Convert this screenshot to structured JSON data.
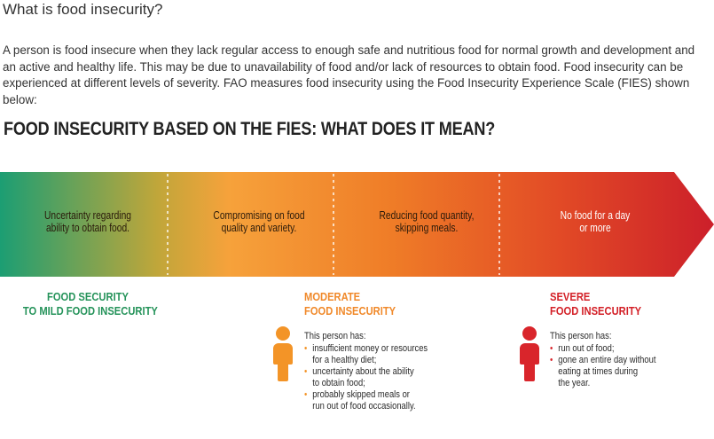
{
  "heading": "What is food insecurity?",
  "intro": "A person is food insecure when they lack regular access to enough safe and nutritious food for normal growth and development and an active and healthy life. This may be due to unavailability of food and/or lack of resources to obtain food. Food insecurity can be experienced at different levels of severity. FAO measures food insecurity using the Food Insecurity Experience Scale (FIES) shown below:",
  "figure": {
    "title": "FOOD INSECURITY BASED ON THE FIES: WHAT DOES IT MEAN?",
    "segments": [
      {
        "line1": "Uncertainty regarding",
        "line2": "ability to obtain food."
      },
      {
        "line1": "Compromising on food",
        "line2": "quality and variety."
      },
      {
        "line1": "Reducing food quantity,",
        "line2": "skipping meals."
      },
      {
        "line1": "No food for a day",
        "line2": "or more"
      }
    ],
    "levels": {
      "mild": {
        "line1": "FOOD SECURITY",
        "line2": "TO MILD FOOD INSECURITY"
      },
      "moderate": {
        "line1": "MODERATE",
        "line2": "FOOD INSECURITY",
        "lead": "This person has:",
        "bullets": [
          {
            "line1": "insufficient money or resources",
            "line2": "for a healthy diet;"
          },
          {
            "line1": "uncertainty about the ability",
            "line2": "to obtain food;"
          },
          {
            "line1": "probably skipped meals or",
            "line2": "run out of food occasionally."
          }
        ]
      },
      "severe": {
        "line1": "SEVERE",
        "line2": "FOOD INSECURITY",
        "lead": "This person has:",
        "bullets": [
          {
            "line1": "run out of food;",
            "line2": ""
          },
          {
            "line1": "gone an entire day without",
            "line2": "eating at times during",
            "line3": "the year."
          }
        ]
      }
    },
    "colors": {
      "green": "#1fa36e",
      "yellow": "#f7a23a",
      "orange": "#ef7424",
      "red": "#d3202a",
      "bullet_orange": "#f39427",
      "bullet_red": "#d9252b"
    },
    "icons": [
      "person-icon-orange",
      "person-icon-red"
    ]
  }
}
